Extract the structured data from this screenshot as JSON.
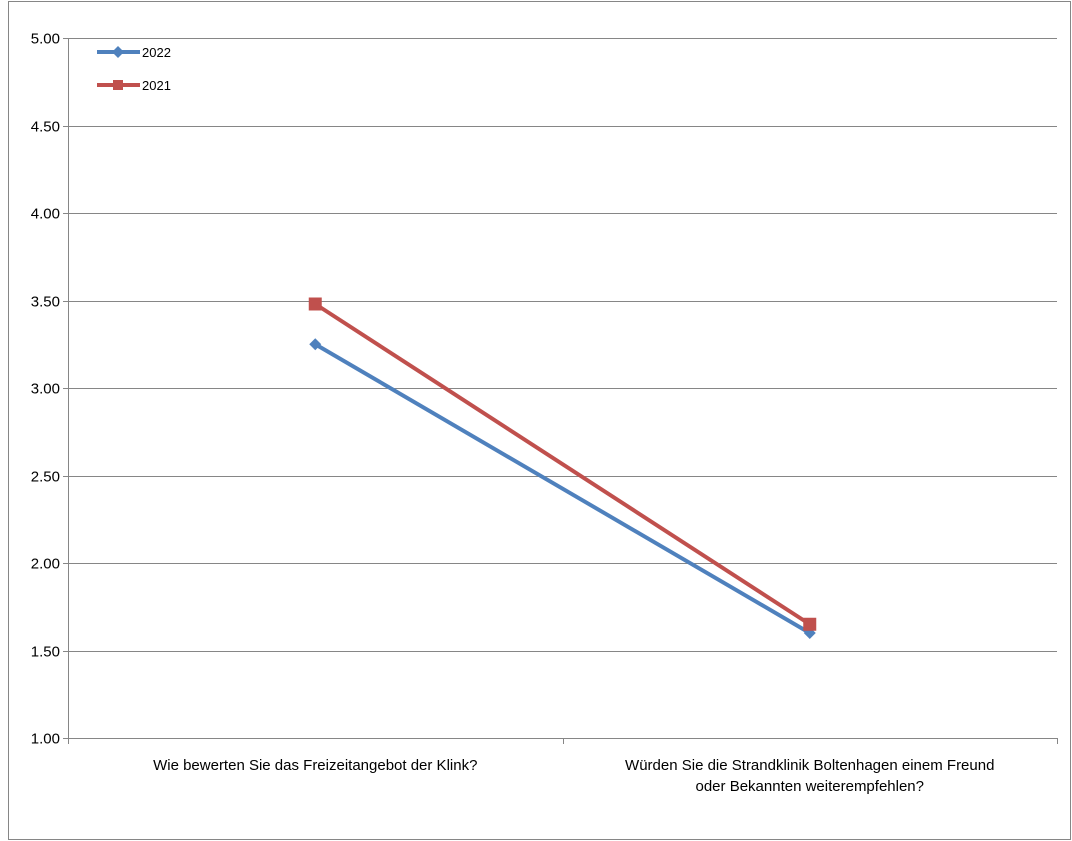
{
  "chart_data": {
    "type": "line",
    "title": "",
    "xlabel": "",
    "ylabel": "",
    "ylim": [
      1.0,
      5.0
    ],
    "y_ticks": [
      "1.00",
      "1.50",
      "2.00",
      "2.50",
      "3.00",
      "3.50",
      "4.00",
      "4.50",
      "5.00"
    ],
    "y_tick_values": [
      1.0,
      1.5,
      2.0,
      2.5,
      3.0,
      3.5,
      4.0,
      4.5,
      5.0
    ],
    "grid": true,
    "legend_position": "top-left",
    "categories": [
      [
        "Wie bewerten Sie das Freizeitangebot der Klink?"
      ],
      [
        "Würden Sie die Strandklinik Boltenhagen einem Freund",
        "oder Bekannten weiterempfehlen?"
      ]
    ],
    "series": [
      {
        "name": "2022",
        "values": [
          3.25,
          1.6
        ],
        "color": "#4F81BD",
        "marker": "diamond"
      },
      {
        "name": "2021",
        "values": [
          3.48,
          1.65
        ],
        "color": "#C0504D",
        "marker": "square"
      }
    ]
  }
}
